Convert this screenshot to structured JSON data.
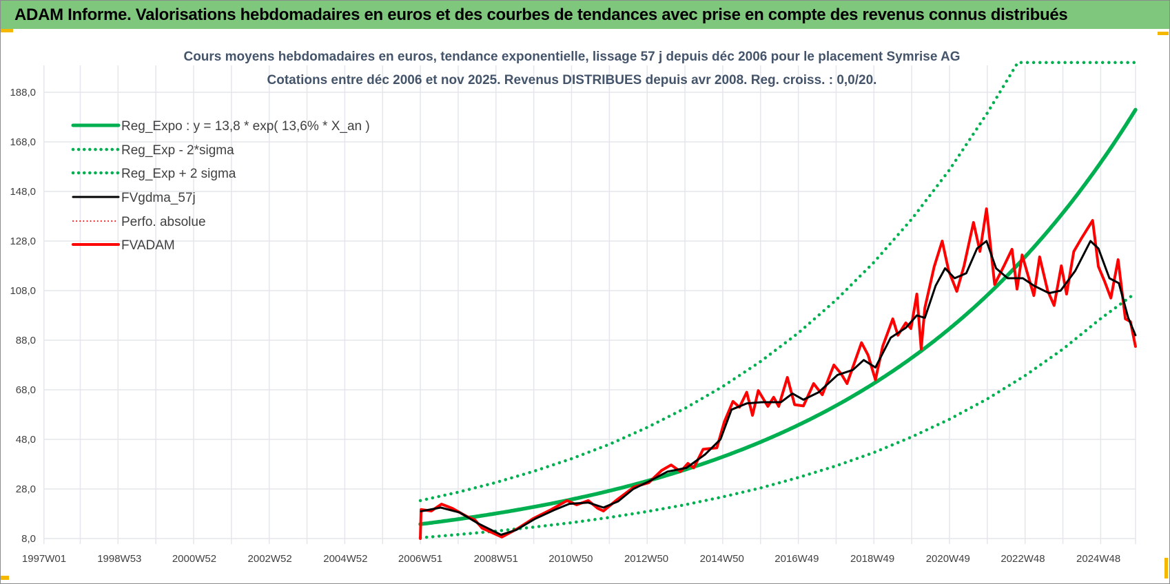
{
  "header": {
    "title": "ADAM Informe. Valorisations hebdomadaires en euros et des courbes de tendances avec prise en compte des revenus connus distribués"
  },
  "colors": {
    "header_bg": "#80c77e",
    "regression": "#00b050",
    "moving_average": "#000000",
    "fvadam": "#ff0000",
    "gridline": "#e3e6ec"
  },
  "chart_data": {
    "type": "line",
    "title": "Cours moyens hebdomadaires en euros, tendance exponentielle, lissage 57 j depuis déc 2006 pour le placement Symrise AG",
    "subtitle": "Cotations entre déc 2006 et nov 2025. Revenus DISTRIBUES depuis avr 2008. Reg. croiss. : 0,0/20.",
    "xlabel": "",
    "ylabel": "",
    "xlim": [
      "1997W01",
      "2025W47"
    ],
    "ylim": [
      8,
      200
    ],
    "grid": true,
    "legend_position": "top-left",
    "y_ticks": [
      "8,0",
      "28,0",
      "48,0",
      "68,0",
      "88,0",
      "108,0",
      "128,0",
      "148,0",
      "168,0",
      "188,0"
    ],
    "y_tick_values": [
      8,
      28,
      48,
      68,
      88,
      108,
      128,
      148,
      168,
      188
    ],
    "x_ticks": [
      "1997W01",
      "1998W53",
      "2000W52",
      "2002W52",
      "2004W52",
      "2006W51",
      "2008W51",
      "2010W50",
      "2012W50",
      "2014W50",
      "2016W49",
      "2018W49",
      "2020W49",
      "2022W48",
      "2024W48"
    ],
    "regression": {
      "a": 13.8,
      "rate": 0.136,
      "origin": "2006W51",
      "end": "2025W47"
    },
    "series": [
      {
        "name": "Reg_Expo : y = 13,8 * exp( 13,6% *  X_an )",
        "style": "solid",
        "color": "#00b050",
        "formula": true
      },
      {
        "name": "Reg_Exp - 2*sigma",
        "style": "dotted",
        "color": "#00b050",
        "points": [
          [
            "2006W51",
            8.3
          ],
          [
            "2007W51",
            9.6
          ],
          [
            "2008W51",
            11.0
          ],
          [
            "2009W51",
            12.6
          ],
          [
            "2010W51",
            14.4
          ],
          [
            "2011W51",
            16.5
          ],
          [
            "2012W51",
            18.9
          ],
          [
            "2013W51",
            21.6
          ],
          [
            "2014W51",
            24.8
          ],
          [
            "2015W51",
            28.4
          ],
          [
            "2016W51",
            32.6
          ],
          [
            "2017W51",
            37.3
          ],
          [
            "2018W51",
            42.7
          ],
          [
            "2019W51",
            49.0
          ],
          [
            "2020W51",
            56.1
          ],
          [
            "2021W51",
            64.3
          ],
          [
            "2022W51",
            73.7
          ],
          [
            "2023W51",
            84.4
          ],
          [
            "2024W51",
            96.7
          ],
          [
            "2025W47",
            107
          ]
        ]
      },
      {
        "name": "Reg_Exp + 2 sigma",
        "style": "dotted",
        "color": "#00b050",
        "points": [
          [
            "2006W51",
            23.3
          ],
          [
            "2007W51",
            26.7
          ],
          [
            "2008W51",
            30.6
          ],
          [
            "2009W51",
            35.1
          ],
          [
            "2010W51",
            40.2
          ],
          [
            "2011W51",
            46.0
          ],
          [
            "2012W51",
            52.8
          ],
          [
            "2013W51",
            60.5
          ],
          [
            "2014W51",
            69.3
          ],
          [
            "2015W51",
            79.4
          ],
          [
            "2016W51",
            90.9
          ],
          [
            "2017W51",
            104.2
          ],
          [
            "2018W51",
            119.4
          ],
          [
            "2019W51",
            136.8
          ],
          [
            "2020W51",
            156.7
          ],
          [
            "2021W51",
            179.6
          ],
          [
            "2022W41",
            200
          ],
          [
            "2025W47",
            200
          ]
        ]
      },
      {
        "name": "FVgdma_57j",
        "style": "solid",
        "color": "#000000",
        "points": [
          [
            "2006W52",
            19
          ],
          [
            "2007W27",
            20.5
          ],
          [
            "2008W01",
            18.5
          ],
          [
            "2008W27",
            14
          ],
          [
            "2009W06",
            9.5
          ],
          [
            "2009W27",
            11.5
          ],
          [
            "2010W01",
            16
          ],
          [
            "2010W27",
            19.5
          ],
          [
            "2010W48",
            22
          ],
          [
            "2011W22",
            22.5
          ],
          [
            "2011W43",
            20.5
          ],
          [
            "2012W11",
            23
          ],
          [
            "2012W32",
            28
          ],
          [
            "2013W01",
            31
          ],
          [
            "2013W27",
            35
          ],
          [
            "2014W01",
            36.5
          ],
          [
            "2014W27",
            42
          ],
          [
            "2014W48",
            48
          ],
          [
            "2015W11",
            60
          ],
          [
            "2015W32",
            62.5
          ],
          [
            "2016W01",
            63
          ],
          [
            "2016W27",
            63
          ],
          [
            "2016W43",
            66.5
          ],
          [
            "2017W06",
            64
          ],
          [
            "2017W27",
            67
          ],
          [
            "2018W01",
            74
          ],
          [
            "2018W22",
            76
          ],
          [
            "2018W37",
            80
          ],
          [
            "2019W01",
            77
          ],
          [
            "2019W22",
            89
          ],
          [
            "2019W43",
            93
          ],
          [
            "2020W06",
            98
          ],
          [
            "2020W17",
            97
          ],
          [
            "2020W32",
            110
          ],
          [
            "2020W45",
            117
          ],
          [
            "2021W06",
            113
          ],
          [
            "2021W22",
            115
          ],
          [
            "2021W37",
            125
          ],
          [
            "2021W50",
            128
          ],
          [
            "2022W11",
            117
          ],
          [
            "2022W27",
            113
          ],
          [
            "2022W48",
            113
          ],
          [
            "2023W11",
            110
          ],
          [
            "2023W32",
            107
          ],
          [
            "2023W48",
            108
          ],
          [
            "2024W16",
            116
          ],
          [
            "2024W37",
            128
          ],
          [
            "2024W48",
            125
          ],
          [
            "2025W11",
            113
          ],
          [
            "2025W24",
            111
          ],
          [
            "2025W37",
            97
          ],
          [
            "2025W47",
            90
          ]
        ]
      },
      {
        "name": "Perfo. absolue",
        "style": "dotted",
        "color": "#ff0000",
        "points": []
      },
      {
        "name": "FVADAM",
        "style": "solid",
        "color": "#ff0000",
        "points": [
          [
            "2006W51",
            8
          ],
          [
            "2006W52",
            19.7
          ],
          [
            "2007W14",
            19.1
          ],
          [
            "2007W28",
            21.9
          ],
          [
            "2007W43",
            20.2
          ],
          [
            "2008W11",
            16.9
          ],
          [
            "2008W22",
            15.5
          ],
          [
            "2008W32",
            12.2
          ],
          [
            "2008W45",
            10.5
          ],
          [
            "2009W07",
            8.6
          ],
          [
            "2009W28",
            11.9
          ],
          [
            "2009W50",
            16
          ],
          [
            "2010W23",
            19.7
          ],
          [
            "2010W45",
            23.3
          ],
          [
            "2011W06",
            21.6
          ],
          [
            "2011W22",
            23.3
          ],
          [
            "2011W35",
            20.2
          ],
          [
            "2011W43",
            19.1
          ],
          [
            "2012W08",
            23.3
          ],
          [
            "2012W33",
            28.8
          ],
          [
            "2013W01",
            30.5
          ],
          [
            "2013W19",
            35.5
          ],
          [
            "2013W32",
            37.7
          ],
          [
            "2013W45",
            35
          ],
          [
            "2014W03",
            38.3
          ],
          [
            "2014W11",
            36.5
          ],
          [
            "2014W24",
            44
          ],
          [
            "2014W43",
            44.6
          ],
          [
            "2015W01",
            55
          ],
          [
            "2015W13",
            63.3
          ],
          [
            "2015W22",
            61
          ],
          [
            "2015W32",
            67
          ],
          [
            "2015W40",
            57.7
          ],
          [
            "2015W48",
            67.7
          ],
          [
            "2016W09",
            61.3
          ],
          [
            "2016W17",
            65
          ],
          [
            "2016W24",
            61.3
          ],
          [
            "2016W36",
            73
          ],
          [
            "2016W46",
            62
          ],
          [
            "2017W06",
            61.5
          ],
          [
            "2017W20",
            70.5
          ],
          [
            "2017W32",
            66
          ],
          [
            "2017W48",
            78
          ],
          [
            "2018W06",
            74.4
          ],
          [
            "2018W14",
            70.5
          ],
          [
            "2018W34",
            87
          ],
          [
            "2018W43",
            82
          ],
          [
            "2019W01",
            72
          ],
          [
            "2019W11",
            85.5
          ],
          [
            "2019W25",
            96.6
          ],
          [
            "2019W32",
            90
          ],
          [
            "2019W43",
            95
          ],
          [
            "2019W50",
            92.7
          ],
          [
            "2020W06",
            106.6
          ],
          [
            "2020W12",
            84.4
          ],
          [
            "2020W17",
            101
          ],
          [
            "2020W30",
            117.7
          ],
          [
            "2020W41",
            128
          ],
          [
            "2020W50",
            116
          ],
          [
            "2021W09",
            107.7
          ],
          [
            "2021W19",
            118
          ],
          [
            "2021W32",
            135.5
          ],
          [
            "2021W41",
            123.8
          ],
          [
            "2021W50",
            141
          ],
          [
            "2022W09",
            110.5
          ],
          [
            "2022W22",
            118
          ],
          [
            "2022W33",
            124.7
          ],
          [
            "2022W40",
            108.6
          ],
          [
            "2022W47",
            122.4
          ],
          [
            "2023W11",
            106
          ],
          [
            "2023W19",
            121.6
          ],
          [
            "2023W30",
            108
          ],
          [
            "2023W39",
            102
          ],
          [
            "2023W49",
            118
          ],
          [
            "2024W04",
            106.6
          ],
          [
            "2024W14",
            123.8
          ],
          [
            "2024W24",
            128.8
          ],
          [
            "2024W40",
            136.3
          ],
          [
            "2024W48",
            117.7
          ],
          [
            "2025W04",
            112
          ],
          [
            "2025W13",
            105
          ],
          [
            "2025W23",
            120.5
          ],
          [
            "2025W33",
            96.6
          ],
          [
            "2025W40",
            95.5
          ],
          [
            "2025W47",
            85.5
          ]
        ]
      }
    ]
  }
}
